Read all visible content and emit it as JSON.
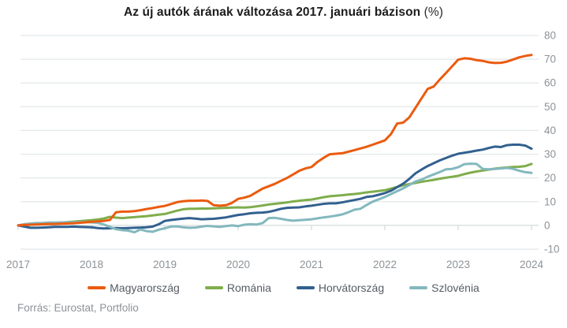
{
  "title": {
    "main": "Az új autók árának változása 2017. januári bázison",
    "suffix": " (%)"
  },
  "source": "Forrás: Eurostat, Portfolio",
  "colors": {
    "grid": "#dbe2e4",
    "zero_line": "#c9d2d5",
    "axis_text": "#8d9398",
    "tick": "#c9d2d5",
    "legend_text": "#565c63",
    "title_text": "#1c1c1c"
  },
  "chart_data": {
    "type": "line",
    "title": "Az új autók árának változása 2017. januári bázison (%)",
    "x_unit": "month",
    "x_start": "2017-01",
    "x_end": "2024-01",
    "x_ticks": [
      "2017",
      "2018",
      "2019",
      "2020",
      "2021",
      "2022",
      "2023",
      "2024"
    ],
    "ylim": [
      -10,
      80
    ],
    "ytick_step": 10,
    "grid": true,
    "legend_position": "bottom",
    "series": [
      {
        "name": "Magyarország",
        "color": "#eb5b0f",
        "values": [
          0,
          0.2,
          0.3,
          0.4,
          0.5,
          0.6,
          0.6,
          0.7,
          0.8,
          0.9,
          1.1,
          1.3,
          1.5,
          1.7,
          1.9,
          2.3,
          5.5,
          5.8,
          5.8,
          6.0,
          6.4,
          6.9,
          7.3,
          7.8,
          8.2,
          9.0,
          9.8,
          10.2,
          10.4,
          10.4,
          10.5,
          10.3,
          8.5,
          8.3,
          8.5,
          9.5,
          11.2,
          11.7,
          12.5,
          14.0,
          15.5,
          16.5,
          17.5,
          18.8,
          20.0,
          21.5,
          23.0,
          24.0,
          24.6,
          26.8,
          28.5,
          30.0,
          30.2,
          30.4,
          31.0,
          31.7,
          32.4,
          33.1,
          34.0,
          34.9,
          35.8,
          38.5,
          42.9,
          43.3,
          45.5,
          49.5,
          53.5,
          57.5,
          58.5,
          61.5,
          64.2,
          67.0,
          69.8,
          70.4,
          70.2,
          69.6,
          69.3,
          68.7,
          68.4,
          68.5,
          69.0,
          69.9,
          70.8,
          71.4,
          71.8
        ]
      },
      {
        "name": "Románia",
        "color": "#7fad4c",
        "values": [
          0,
          0.1,
          0.3,
          0.5,
          0.7,
          0.9,
          1.0,
          1.2,
          1.4,
          1.6,
          1.8,
          2.0,
          2.2,
          2.5,
          2.9,
          3.6,
          3.3,
          3.1,
          3.3,
          3.5,
          3.7,
          3.9,
          4.2,
          4.5,
          4.8,
          5.5,
          6.2,
          6.8,
          7.0,
          7.0,
          7.1,
          7.1,
          7.2,
          7.3,
          7.4,
          7.5,
          7.6,
          7.5,
          7.7,
          8.0,
          8.4,
          8.8,
          9.1,
          9.4,
          9.7,
          10.1,
          10.4,
          10.7,
          10.9,
          11.4,
          11.9,
          12.3,
          12.5,
          12.7,
          13.0,
          13.2,
          13.5,
          13.9,
          14.2,
          14.5,
          14.8,
          15.5,
          16.2,
          16.9,
          17.4,
          17.9,
          18.4,
          18.8,
          19.2,
          19.7,
          20.1,
          20.5,
          20.9,
          21.6,
          22.2,
          22.7,
          23.1,
          23.5,
          23.9,
          24.2,
          24.4,
          24.6,
          24.7,
          25.0,
          25.9
        ]
      },
      {
        "name": "Horvátország",
        "color": "#32608f",
        "values": [
          0,
          -0.5,
          -1.0,
          -1.0,
          -0.9,
          -0.8,
          -0.6,
          -0.6,
          -0.6,
          -0.5,
          -0.6,
          -0.7,
          -0.8,
          -1.1,
          -1.3,
          -1.2,
          -1.1,
          -1.2,
          -1.1,
          -1.0,
          -0.9,
          -0.8,
          -0.5,
          0.5,
          1.9,
          2.3,
          2.6,
          2.9,
          3.1,
          2.9,
          2.6,
          2.7,
          2.8,
          3.1,
          3.4,
          3.9,
          4.4,
          4.7,
          5.1,
          5.3,
          5.4,
          5.7,
          6.3,
          7.0,
          7.4,
          7.5,
          7.6,
          8.0,
          8.3,
          8.7,
          9.1,
          9.3,
          9.3,
          9.7,
          10.2,
          10.7,
          11.2,
          12.0,
          12.3,
          12.9,
          13.6,
          14.6,
          16.1,
          17.6,
          19.6,
          21.9,
          23.5,
          25.0,
          26.2,
          27.4,
          28.4,
          29.4,
          30.2,
          30.6,
          31.0,
          31.5,
          31.9,
          32.6,
          33.2,
          33.0,
          33.8,
          34.0,
          34.0,
          33.6,
          32.3
        ]
      },
      {
        "name": "Szlovénia",
        "color": "#83b8be",
        "values": [
          0,
          0.5,
          0.8,
          1.0,
          1.0,
          1.2,
          1.2,
          1.3,
          1.2,
          1.3,
          1.4,
          1.4,
          1.3,
          1.1,
          0.4,
          -0.6,
          -1.6,
          -2.0,
          -2.2,
          -2.9,
          -1.7,
          -2.4,
          -2.7,
          -1.8,
          -1.2,
          -0.5,
          -0.4,
          -0.8,
          -1.0,
          -0.9,
          -0.5,
          -0.2,
          -0.4,
          -0.6,
          -0.3,
          0.0,
          -0.3,
          0.3,
          0.5,
          0.4,
          1.0,
          3.1,
          3.2,
          2.8,
          2.3,
          2.0,
          2.2,
          2.4,
          2.6,
          3.0,
          3.4,
          3.7,
          4.1,
          4.6,
          5.5,
          6.6,
          7.0,
          8.6,
          10.0,
          11.0,
          12.0,
          13.2,
          14.4,
          15.6,
          17.0,
          18.5,
          19.3,
          20.5,
          21.5,
          22.5,
          23.6,
          23.8,
          24.5,
          25.8,
          26.0,
          25.9,
          23.8,
          23.6,
          23.8,
          24.0,
          24.2,
          23.8,
          23.0,
          22.4,
          22.1
        ]
      }
    ]
  }
}
